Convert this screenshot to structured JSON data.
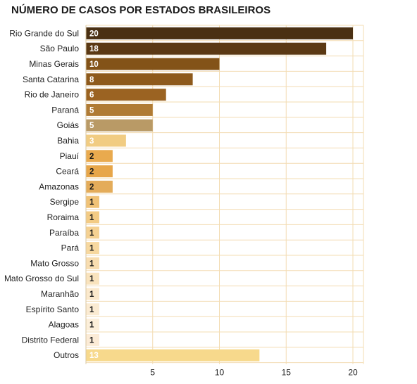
{
  "chart_data": {
    "type": "bar",
    "orientation": "horizontal",
    "title": "NÚMERO DE CASOS POR ESTADOS BRASILEIROS",
    "xlabel": "",
    "ylabel": "",
    "xlim": [
      0,
      20
    ],
    "x_ticks": [
      5,
      10,
      15,
      20
    ],
    "grid": true,
    "categories": [
      "Rio Grande do Sul",
      "São Paulo",
      "Minas Gerais",
      "Santa Catarina",
      "Rio de Janeiro",
      "Paraná",
      "Goiás",
      "Bahia",
      "Piauí",
      "Ceará",
      "Amazonas",
      "Sergipe",
      "Roraima",
      "Paraíba",
      "Pará",
      "Mato Grosso",
      "Mato Grosso do Sul",
      "Maranhão",
      "Espírito Santo",
      "Alagoas",
      "Distrito Federal",
      "Outros"
    ],
    "values": [
      20,
      18,
      10,
      8,
      6,
      5,
      5,
      3,
      2,
      2,
      2,
      1,
      1,
      1,
      1,
      1,
      1,
      1,
      1,
      1,
      1,
      13
    ],
    "colors": [
      "#4a3013",
      "#5b3914",
      "#835318",
      "#8e5a1c",
      "#9b6322",
      "#b07b35",
      "#b99a66",
      "#f1cc82",
      "#e9aa4e",
      "#e7a649",
      "#e4ac5a",
      "#f0c276",
      "#f3cb84",
      "#f5d192",
      "#f7d89f",
      "#f8ddb0",
      "#f9e3bd",
      "#fbe9cc",
      "#fbebd2",
      "#fcefda",
      "#fbebd6",
      "#f7d98c"
    ],
    "label_colors": [
      "#ffffff",
      "#ffffff",
      "#ffffff",
      "#ffffff",
      "#ffffff",
      "#ffffff",
      "#ffffff",
      "#ffffff",
      "#1a1a1a",
      "#1a1a1a",
      "#1a1a1a",
      "#1a1a1a",
      "#1a1a1a",
      "#1a1a1a",
      "#1a1a1a",
      "#1a1a1a",
      "#1a1a1a",
      "#1a1a1a",
      "#1a1a1a",
      "#1a1a1a",
      "#1a1a1a",
      "#ffffff"
    ],
    "grid_color": "#f3dcb2"
  }
}
